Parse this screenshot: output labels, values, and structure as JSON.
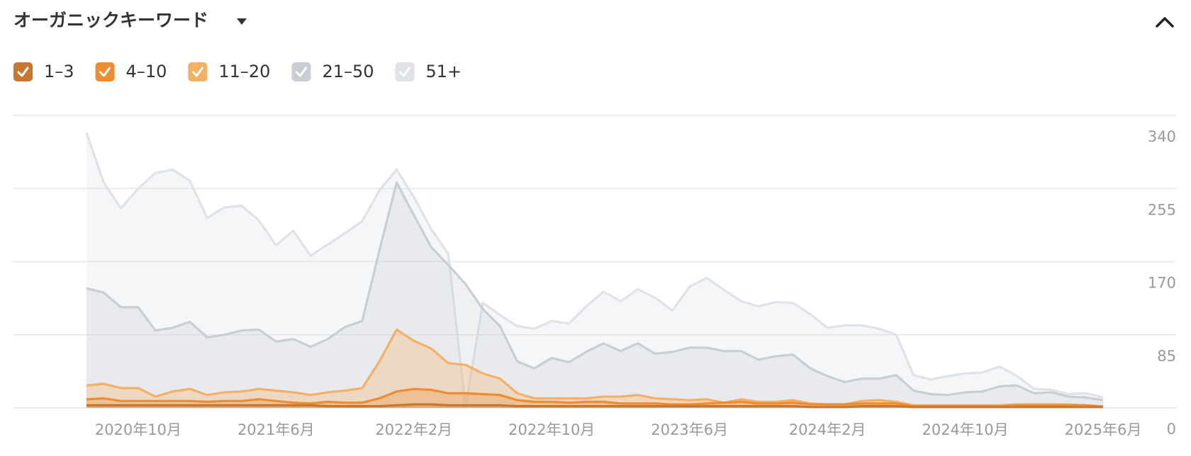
{
  "chart_data": {
    "type": "line",
    "title": "オーガニックキーワード",
    "x": [
      "2020-07",
      "2020-08",
      "2020-09",
      "2020-10",
      "2020-11",
      "2020-12",
      "2021-01",
      "2021-02",
      "2021-03",
      "2021-04",
      "2021-05",
      "2021-06",
      "2021-07",
      "2021-08",
      "2021-09",
      "2021-10",
      "2021-11",
      "2021-12",
      "2022-01",
      "2022-02",
      "2022-03",
      "2022-04",
      "2022-05",
      "2022-06",
      "2022-07",
      "2022-08",
      "2022-09",
      "2022-10",
      "2022-11",
      "2022-12",
      "2023-01",
      "2023-02",
      "2023-03",
      "2023-04",
      "2023-05",
      "2023-06",
      "2023-07",
      "2023-08",
      "2023-09",
      "2023-10",
      "2023-11",
      "2023-12",
      "2024-01",
      "2024-02",
      "2024-03",
      "2024-04",
      "2024-05",
      "2024-06",
      "2024-07",
      "2024-08",
      "2024-09",
      "2024-10",
      "2024-11",
      "2024-12",
      "2025-01",
      "2025-02",
      "2025-03",
      "2025-04",
      "2025-05",
      "2025-06"
    ],
    "xticks": [
      {
        "value": "2020-10",
        "label": "2020年10月"
      },
      {
        "value": "2021-06",
        "label": "2021年6月"
      },
      {
        "value": "2022-02",
        "label": "2022年2月"
      },
      {
        "value": "2022-10",
        "label": "2022年10月"
      },
      {
        "value": "2023-06",
        "label": "2023年6月"
      },
      {
        "value": "2024-02",
        "label": "2024年2月"
      },
      {
        "value": "2024-10",
        "label": "2024年10月"
      },
      {
        "value": "2025-06",
        "label": "2025年6月"
      }
    ],
    "ylim": [
      0,
      340
    ],
    "yticks": [
      0,
      85,
      170,
      255,
      340
    ],
    "grid": true,
    "series": [
      {
        "name": "1–3",
        "color": "#c8772e",
        "values": [
          3,
          3,
          3,
          3,
          3,
          3,
          3,
          3,
          3,
          3,
          3,
          3,
          3,
          3,
          2,
          2,
          2,
          2,
          3,
          4,
          4,
          3,
          3,
          3,
          3,
          2,
          2,
          2,
          2,
          2,
          2,
          2,
          2,
          2,
          2,
          2,
          2,
          2,
          2,
          2,
          2,
          2,
          1,
          1,
          1,
          2,
          2,
          2,
          1,
          1,
          1,
          1,
          1,
          1,
          1,
          1,
          1,
          1,
          1,
          1
        ]
      },
      {
        "name": "4–10",
        "color": "#ef8b30",
        "values": [
          10,
          11,
          8,
          8,
          8,
          8,
          8,
          7,
          8,
          8,
          10,
          8,
          6,
          5,
          7,
          6,
          6,
          11,
          19,
          22,
          21,
          17,
          17,
          16,
          15,
          9,
          7,
          7,
          6,
          7,
          7,
          5,
          5,
          5,
          4,
          4,
          5,
          6,
          7,
          5,
          5,
          6,
          4,
          4,
          4,
          5,
          5,
          5,
          2,
          2,
          2,
          2,
          2,
          2,
          3,
          3,
          3,
          3,
          3,
          1
        ]
      },
      {
        "name": "11–20",
        "color": "#f5b064",
        "values": [
          26,
          28,
          23,
          23,
          13,
          19,
          22,
          15,
          18,
          19,
          22,
          20,
          18,
          15,
          18,
          20,
          23,
          54,
          91,
          78,
          69,
          52,
          50,
          40,
          34,
          17,
          11,
          11,
          11,
          11,
          13,
          13,
          15,
          11,
          10,
          9,
          10,
          6,
          10,
          7,
          7,
          9,
          5,
          4,
          4,
          8,
          9,
          7,
          3,
          3,
          3,
          3,
          3,
          3,
          4,
          4,
          4,
          4,
          3,
          2
        ]
      },
      {
        "name": "21–50",
        "color": "#c9ced5",
        "values": [
          139,
          134,
          117,
          117,
          90,
          93,
          100,
          82,
          85,
          90,
          91,
          77,
          80,
          71,
          80,
          94,
          101,
          183,
          262,
          224,
          187,
          166,
          144,
          115,
          95,
          54,
          46,
          58,
          53,
          65,
          75,
          66,
          75,
          63,
          65,
          70,
          70,
          66,
          66,
          56,
          60,
          62,
          46,
          37,
          30,
          34,
          34,
          38,
          20,
          16,
          15,
          18,
          19,
          25,
          26,
          17,
          18,
          13,
          12,
          9
        ]
      },
      {
        "name": "51+",
        "color": "#dfe2e7",
        "values": [
          320,
          262,
          232,
          255,
          273,
          277,
          264,
          221,
          233,
          235,
          218,
          189,
          206,
          177,
          190,
          203,
          217,
          253,
          277,
          245,
          208,
          179,
          0,
          122,
          108,
          95,
          92,
          101,
          98,
          118,
          135,
          124,
          138,
          128,
          113,
          141,
          151,
          137,
          124,
          118,
          123,
          122,
          109,
          93,
          96,
          96,
          92,
          85,
          38,
          33,
          37,
          40,
          41,
          48,
          37,
          22,
          21,
          16,
          17,
          12
        ]
      }
    ]
  }
}
